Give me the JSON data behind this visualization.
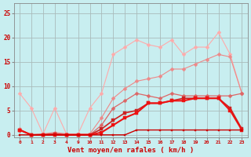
{
  "background_color": "#c8eef0",
  "grid_color": "#aabbbb",
  "xlabel": "Vent moyen/en rafales ( km/h )",
  "xlabel_color": "#cc0000",
  "tick_color": "#cc0000",
  "ylim": [
    -0.5,
    27
  ],
  "yticks": [
    0,
    5,
    10,
    15,
    20,
    25
  ],
  "x_indices": [
    0,
    1,
    2,
    3,
    4,
    5,
    6,
    7,
    8,
    9,
    10,
    11,
    12,
    13,
    14,
    15,
    16,
    17,
    18,
    19
  ],
  "x_labels": [
    "0",
    "1",
    "2",
    "3",
    "4",
    "9",
    "10",
    "11",
    "12",
    "13",
    "14",
    "15",
    "16",
    "17",
    "18",
    "19",
    "20",
    "21",
    "22",
    "23"
  ],
  "series": [
    {
      "name": "rafales_light_pink",
      "color": "#ffaaaa",
      "linewidth": 0.8,
      "marker": "D",
      "markersize": 2.5,
      "y": [
        8.5,
        5.5,
        0.2,
        5.5,
        0.2,
        0.2,
        5.5,
        8.5,
        16.5,
        18.0,
        19.5,
        18.5,
        18.0,
        19.5,
        16.5,
        18.0,
        18.0,
        21.0,
        16.5,
        8.5
      ]
    },
    {
      "name": "line2_salmon",
      "color": "#ee8888",
      "linewidth": 0.8,
      "marker": "D",
      "markersize": 2.5,
      "y": [
        1.2,
        0.0,
        0.2,
        0.5,
        0.2,
        0.2,
        0.2,
        3.5,
        7.5,
        9.5,
        11.0,
        11.5,
        12.0,
        13.5,
        13.5,
        14.5,
        15.5,
        16.5,
        16.0,
        8.5
      ]
    },
    {
      "name": "line3_medium",
      "color": "#dd6666",
      "linewidth": 0.9,
      "marker": "D",
      "markersize": 2.5,
      "y": [
        1.0,
        0.0,
        0.1,
        0.3,
        0.0,
        0.0,
        0.0,
        2.0,
        5.5,
        7.0,
        8.5,
        8.0,
        7.5,
        8.5,
        8.0,
        8.0,
        8.0,
        8.0,
        8.0,
        8.5
      ]
    },
    {
      "name": "line4_dark_red",
      "color": "#cc2222",
      "linewidth": 1.2,
      "marker": "s",
      "markersize": 2.5,
      "y": [
        1.0,
        0.0,
        0.0,
        0.1,
        0.0,
        0.0,
        0.0,
        1.2,
        3.0,
        4.5,
        5.0,
        6.5,
        6.5,
        7.0,
        7.5,
        7.5,
        7.5,
        7.5,
        5.5,
        1.2
      ]
    },
    {
      "name": "line5_bright_red",
      "color": "#ee1111",
      "linewidth": 1.5,
      "marker": "s",
      "markersize": 2.5,
      "y": [
        1.0,
        0.0,
        0.0,
        0.0,
        0.0,
        0.0,
        0.0,
        0.5,
        2.0,
        3.5,
        4.5,
        6.5,
        6.5,
        7.0,
        7.0,
        7.5,
        7.5,
        7.5,
        5.0,
        1.0
      ]
    },
    {
      "name": "line6_baseline",
      "color": "#cc0000",
      "linewidth": 1.0,
      "marker": "s",
      "markersize": 2.0,
      "y": [
        0.0,
        0.0,
        0.0,
        0.0,
        0.0,
        0.0,
        0.0,
        0.0,
        0.0,
        0.0,
        1.0,
        1.0,
        1.0,
        1.0,
        1.0,
        1.0,
        1.0,
        1.0,
        1.0,
        1.0
      ]
    }
  ]
}
